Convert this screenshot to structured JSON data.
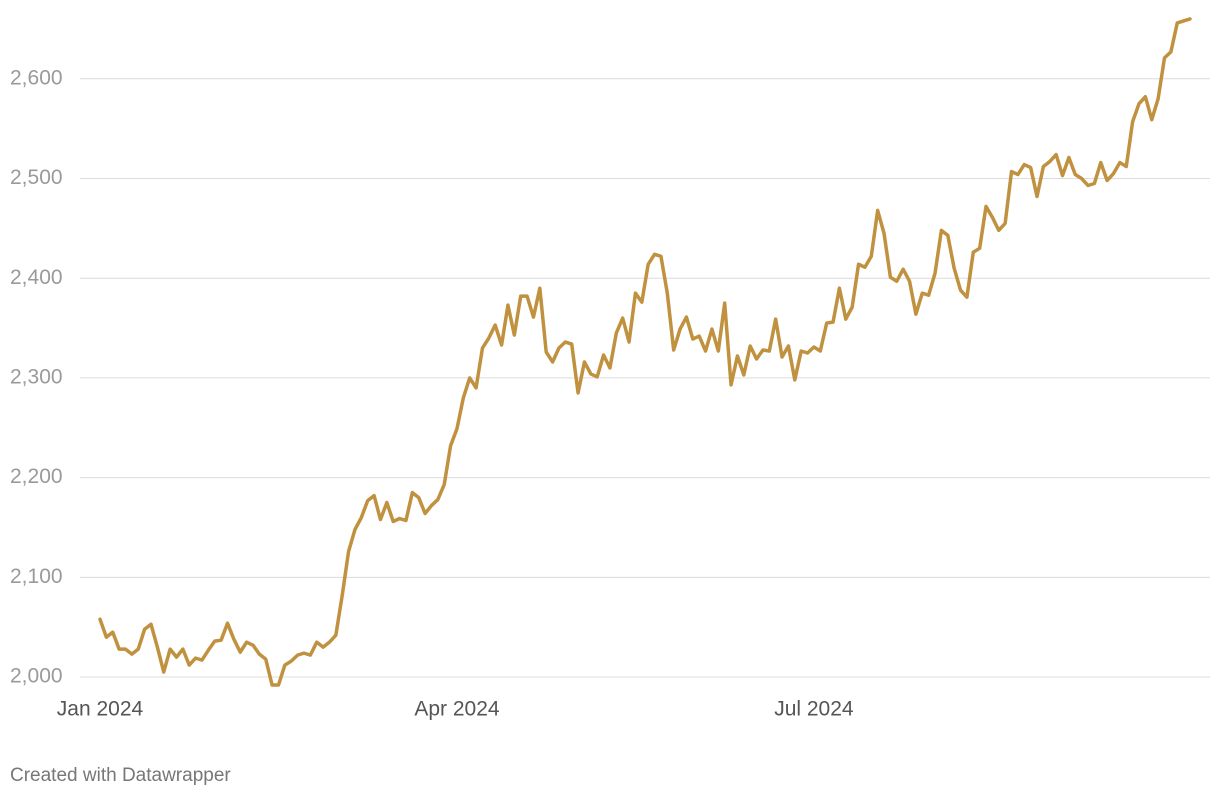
{
  "chart_data": {
    "type": "line",
    "credit": "Created with Datawrapper",
    "categories": [
      "Jan 2024",
      null,
      null,
      null,
      null,
      null,
      null,
      null,
      null,
      null,
      null,
      null,
      null,
      null,
      null,
      null,
      null,
      null,
      null,
      null,
      null,
      null,
      null,
      null,
      null,
      null,
      null,
      null,
      null,
      null,
      null,
      null,
      null,
      null,
      null,
      null,
      null,
      null,
      null,
      null,
      null,
      null,
      null,
      null,
      null,
      null,
      null,
      null,
      null,
      null,
      null,
      null,
      null,
      null,
      null,
      null,
      "Apr 2024",
      null,
      null,
      null,
      null,
      null,
      null,
      null,
      null,
      null,
      null,
      null,
      null,
      null,
      null,
      null,
      null,
      null,
      null,
      null,
      null,
      null,
      null,
      null,
      null,
      null,
      null,
      null,
      null,
      null,
      null,
      null,
      null,
      null,
      null,
      null,
      null,
      null,
      null,
      null,
      null,
      null,
      null,
      null,
      null,
      null,
      null,
      null,
      null,
      null,
      null,
      null,
      null,
      null,
      null,
      null,
      "Jul 2024",
      null,
      null,
      null,
      null,
      null,
      null,
      null,
      null,
      null,
      null,
      null,
      null,
      null,
      null,
      null,
      null,
      null,
      null,
      null,
      null,
      null,
      null,
      null,
      null,
      null,
      null,
      null,
      null,
      null,
      null,
      null,
      null,
      null,
      null,
      null,
      null,
      null,
      null,
      null,
      null,
      null,
      null,
      null,
      null,
      null,
      null,
      null,
      null,
      null,
      null,
      null,
      null,
      null,
      null,
      null,
      null,
      null,
      null,
      null
    ],
    "values": [
      2058,
      2040,
      2045,
      2028,
      2028,
      2023,
      2028,
      2048,
      2053,
      2030,
      2005,
      2028,
      2020,
      2028,
      2012,
      2019,
      2017,
      2027,
      2036,
      2037,
      2054,
      2038,
      2025,
      2035,
      2032,
      2023,
      2018,
      1992,
      1992,
      2012,
      2016,
      2022,
      2024,
      2022,
      2035,
      2030,
      2035,
      2042,
      2082,
      2126,
      2148,
      2160,
      2177,
      2182,
      2158,
      2175,
      2156,
      2159,
      2157,
      2185,
      2180,
      2164,
      2172,
      2178,
      2193,
      2232,
      2249,
      2280,
      2300,
      2290,
      2330,
      2340,
      2353,
      2333,
      2373,
      2343,
      2382,
      2382,
      2361,
      2390,
      2326,
      2316,
      2330,
      2336,
      2334,
      2285,
      2316,
      2304,
      2301,
      2323,
      2310,
      2345,
      2360,
      2336,
      2385,
      2376,
      2414,
      2424,
      2422,
      2385,
      2328,
      2349,
      2361,
      2339,
      2342,
      2327,
      2349,
      2327,
      2375,
      2293,
      2322,
      2303,
      2332,
      2319,
      2328,
      2327,
      2359,
      2321,
      2332,
      2298,
      2327,
      2325,
      2331,
      2327,
      2355,
      2356,
      2390,
      2359,
      2371,
      2414,
      2411,
      2422,
      2468,
      2445,
      2401,
      2397,
      2409,
      2397,
      2364,
      2385,
      2383,
      2405,
      2448,
      2443,
      2410,
      2388,
      2381,
      2426,
      2430,
      2472,
      2461,
      2448,
      2455,
      2507,
      2504,
      2514,
      2511,
      2482,
      2512,
      2517,
      2524,
      2503,
      2521,
      2504,
      2500,
      2493,
      2495,
      2516,
      2498,
      2505,
      2516,
      2512,
      2557,
      2575,
      2582,
      2559,
      2580,
      2621,
      2627,
      2656,
      2658,
      2660
    ],
    "color": "#c0913f",
    "ylim": [
      1980,
      2670
    ],
    "yticks": [
      {
        "value": 2000,
        "label": "2,000"
      },
      {
        "value": 2100,
        "label": "2,100"
      },
      {
        "value": 2200,
        "label": "2,200"
      },
      {
        "value": 2300,
        "label": "2,300"
      },
      {
        "value": 2400,
        "label": "2,400"
      },
      {
        "value": 2500,
        "label": "2,500"
      },
      {
        "value": 2600,
        "label": "2,600"
      }
    ],
    "grid": true
  }
}
